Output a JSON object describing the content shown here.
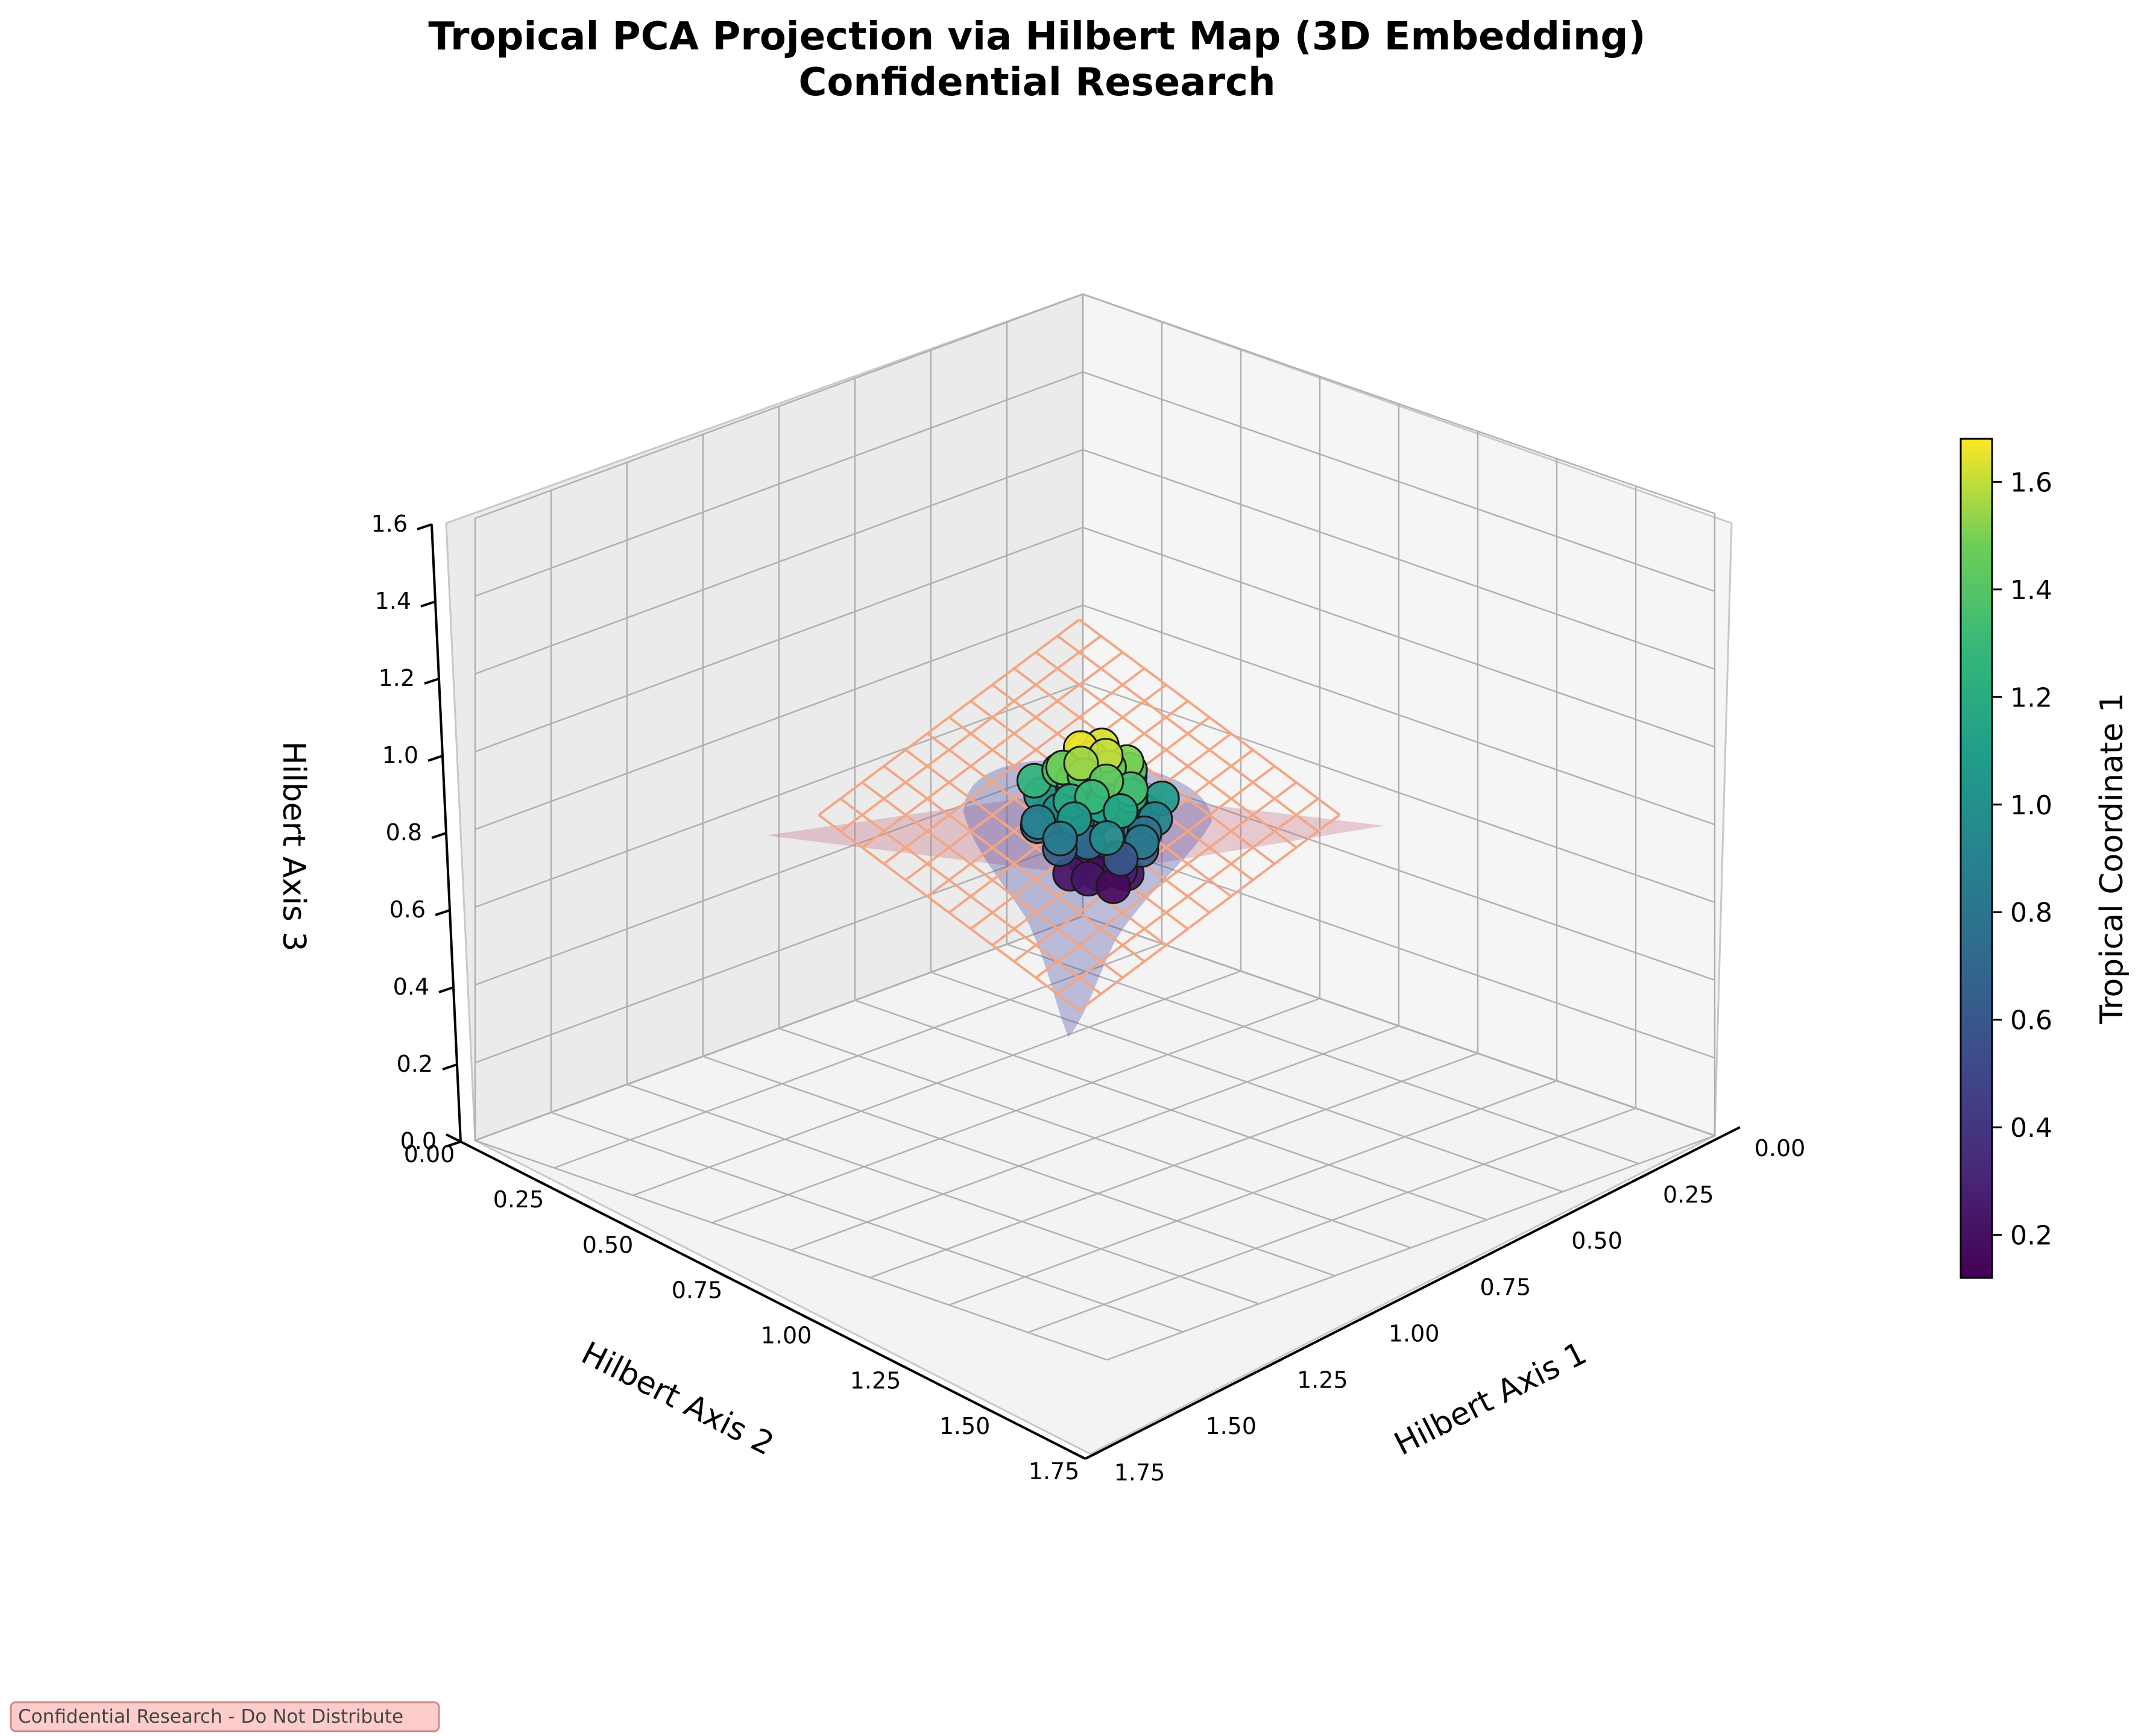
{
  "chart_data": {
    "type": "scatter",
    "projection": "3d",
    "title_line1": "Tropical PCA Projection via Hilbert Map (3D Embedding)",
    "title_line2": "Confidential Research",
    "xlabel": "Hilbert Axis 1",
    "ylabel": "Hilbert Axis 2",
    "zlabel": "Hilbert Axis 3",
    "xlim": [
      0,
      1.75
    ],
    "ylim": [
      0,
      1.75
    ],
    "zlim": [
      0,
      1.6
    ],
    "x_ticks": [
      "0.00",
      "0.25",
      "0.50",
      "0.75",
      "1.00",
      "1.25",
      "1.50",
      "1.75"
    ],
    "y_ticks": [
      "0.00",
      "0.25",
      "0.50",
      "0.75",
      "1.00",
      "1.25",
      "1.50",
      "1.75"
    ],
    "z_ticks": [
      "0.0",
      "0.2",
      "0.4",
      "0.6",
      "0.8",
      "1.0",
      "1.2",
      "1.4",
      "1.6"
    ],
    "grid": true,
    "colorbar": {
      "label": "Tropical Coordinate 1",
      "colormap": "viridis",
      "range": [
        0.12,
        1.68
      ],
      "ticks": [
        "0.2",
        "0.4",
        "0.6",
        "0.8",
        "1.0",
        "1.2",
        "1.4",
        "1.6"
      ]
    },
    "surfaces": [
      {
        "kind": "plane",
        "style": "translucent",
        "color": "#c0607a",
        "alpha": 0.3
      },
      {
        "kind": "cone",
        "style": "translucent",
        "color": "#5050a8",
        "alpha": 0.35
      },
      {
        "kind": "wireframe plane",
        "color": "#f4a582"
      }
    ],
    "points": [
      {
        "x": 0.88,
        "y": 0.87,
        "z": 0.68,
        "c": 0.18
      },
      {
        "x": 0.92,
        "y": 0.83,
        "z": 0.68,
        "c": 0.2
      },
      {
        "x": 0.84,
        "y": 0.91,
        "z": 0.68,
        "c": 0.21
      },
      {
        "x": 0.95,
        "y": 0.9,
        "z": 0.68,
        "c": 0.16
      },
      {
        "x": 0.81,
        "y": 0.84,
        "z": 0.69,
        "c": 0.24
      },
      {
        "x": 0.9,
        "y": 0.92,
        "z": 0.69,
        "c": 0.22
      },
      {
        "x": 0.86,
        "y": 0.8,
        "z": 0.69,
        "c": 0.19
      },
      {
        "x": 0.93,
        "y": 0.86,
        "z": 0.7,
        "c": 0.28
      },
      {
        "x": 0.78,
        "y": 0.88,
        "z": 0.76,
        "c": 0.62
      },
      {
        "x": 0.97,
        "y": 0.84,
        "z": 0.76,
        "c": 0.66
      },
      {
        "x": 0.85,
        "y": 0.95,
        "z": 0.76,
        "c": 0.64
      },
      {
        "x": 0.91,
        "y": 0.78,
        "z": 0.77,
        "c": 0.7
      },
      {
        "x": 0.8,
        "y": 0.8,
        "z": 0.77,
        "c": 0.68
      },
      {
        "x": 0.99,
        "y": 0.92,
        "z": 0.77,
        "c": 0.6
      },
      {
        "x": 0.88,
        "y": 0.9,
        "z": 0.77,
        "c": 0.74
      },
      {
        "x": 0.76,
        "y": 0.92,
        "z": 0.78,
        "c": 0.72
      },
      {
        "x": 0.94,
        "y": 0.8,
        "z": 0.78,
        "c": 0.78
      },
      {
        "x": 0.83,
        "y": 0.88,
        "z": 0.79,
        "c": 0.8
      },
      {
        "x": 0.74,
        "y": 0.85,
        "z": 0.8,
        "c": 0.82
      },
      {
        "x": 1.0,
        "y": 0.87,
        "z": 0.8,
        "c": 0.84
      },
      {
        "x": 0.87,
        "y": 0.97,
        "z": 0.8,
        "c": 0.86
      },
      {
        "x": 0.9,
        "y": 0.76,
        "z": 0.81,
        "c": 0.88
      },
      {
        "x": 0.79,
        "y": 0.95,
        "z": 0.81,
        "c": 0.9
      },
      {
        "x": 0.96,
        "y": 0.79,
        "z": 0.82,
        "c": 0.92
      },
      {
        "x": 0.86,
        "y": 0.84,
        "z": 0.82,
        "c": 0.94
      },
      {
        "x": 0.77,
        "y": 0.79,
        "z": 0.83,
        "c": 0.96
      },
      {
        "x": 0.98,
        "y": 0.95,
        "z": 0.83,
        "c": 0.98
      },
      {
        "x": 0.82,
        "y": 0.92,
        "z": 0.84,
        "c": 1.0
      },
      {
        "x": 0.93,
        "y": 0.82,
        "z": 0.84,
        "c": 1.02
      },
      {
        "x": 0.75,
        "y": 0.9,
        "z": 0.85,
        "c": 1.04
      },
      {
        "x": 0.89,
        "y": 0.95,
        "z": 0.85,
        "c": 1.06
      },
      {
        "x": 0.95,
        "y": 0.76,
        "z": 0.86,
        "c": 1.08
      },
      {
        "x": 0.84,
        "y": 0.8,
        "z": 0.86,
        "c": 1.1
      },
      {
        "x": 0.91,
        "y": 0.89,
        "z": 0.87,
        "c": 1.12
      },
      {
        "x": 0.8,
        "y": 0.86,
        "z": 0.87,
        "c": 1.14
      },
      {
        "x": 0.97,
        "y": 0.9,
        "z": 0.88,
        "c": 1.16
      },
      {
        "x": 0.86,
        "y": 0.93,
        "z": 0.88,
        "c": 1.18
      },
      {
        "x": 0.78,
        "y": 0.82,
        "z": 0.89,
        "c": 1.2
      },
      {
        "x": 0.94,
        "y": 0.84,
        "z": 0.89,
        "c": 1.22
      },
      {
        "x": 0.88,
        "y": 0.78,
        "z": 0.9,
        "c": 1.24
      },
      {
        "x": 0.76,
        "y": 0.93,
        "z": 0.9,
        "c": 1.26
      },
      {
        "x": 0.83,
        "y": 0.89,
        "z": 0.91,
        "c": 1.28
      },
      {
        "x": 0.92,
        "y": 0.93,
        "z": 0.91,
        "c": 1.3
      },
      {
        "x": 0.85,
        "y": 0.83,
        "z": 0.92,
        "c": 1.32
      },
      {
        "x": 0.96,
        "y": 0.86,
        "z": 0.92,
        "c": 1.34
      },
      {
        "x": 0.8,
        "y": 0.9,
        "z": 0.93,
        "c": 1.36
      },
      {
        "x": 0.9,
        "y": 0.8,
        "z": 0.93,
        "c": 1.38
      },
      {
        "x": 0.87,
        "y": 0.9,
        "z": 0.94,
        "c": 1.4
      },
      {
        "x": 0.82,
        "y": 0.84,
        "z": 0.94,
        "c": 1.42
      },
      {
        "x": 0.94,
        "y": 0.91,
        "z": 0.95,
        "c": 1.44
      },
      {
        "x": 0.89,
        "y": 0.85,
        "z": 0.95,
        "c": 1.46
      },
      {
        "x": 0.84,
        "y": 0.93,
        "z": 0.96,
        "c": 1.48
      },
      {
        "x": 0.91,
        "y": 0.82,
        "z": 0.96,
        "c": 1.5
      },
      {
        "x": 0.86,
        "y": 0.87,
        "z": 0.97,
        "c": 1.52
      },
      {
        "x": 0.88,
        "y": 0.92,
        "z": 0.98,
        "c": 1.55
      },
      {
        "x": 0.83,
        "y": 0.86,
        "z": 0.98,
        "c": 1.58
      },
      {
        "x": 0.9,
        "y": 0.87,
        "z": 0.99,
        "c": 1.6
      },
      {
        "x": 0.87,
        "y": 0.85,
        "z": 1.0,
        "c": 1.63
      },
      {
        "x": 0.85,
        "y": 0.89,
        "z": 1.0,
        "c": 1.66
      }
    ]
  },
  "footer": {
    "badge_text": "Confidential Research - Do Not Distribute",
    "badge_bg": "#ffcccc",
    "badge_border": "#cc8888"
  }
}
